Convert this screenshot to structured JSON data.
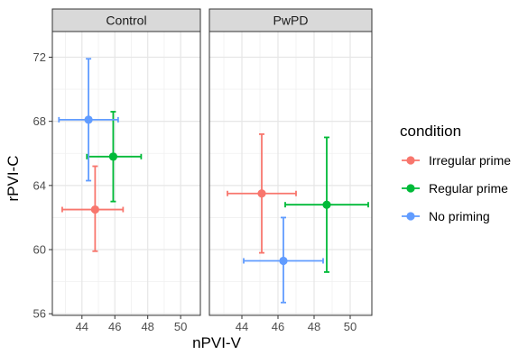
{
  "chart_data": {
    "type": "scatter",
    "facet_labels": [
      "Control",
      "PwPD"
    ],
    "xlabel": "nPVI-V",
    "ylabel": "rPVI-C",
    "xlim": [
      42.2,
      51.2
    ],
    "ylim": [
      55.9,
      73.6
    ],
    "x_ticks": [
      44,
      46,
      48,
      50
    ],
    "y_ticks": [
      56,
      60,
      64,
      68,
      72
    ],
    "grid": true,
    "legend": {
      "title": "condition",
      "position": "right",
      "entries": [
        "Irregular prime",
        "Regular prime",
        "No priming"
      ]
    },
    "series": [
      {
        "name": "Irregular prime",
        "color": "#F8766D",
        "points": [
          {
            "facet": "Control",
            "x": 44.8,
            "y": 62.5,
            "xmin": 42.8,
            "xmax": 46.5,
            "ymin": 59.9,
            "ymax": 65.2
          },
          {
            "facet": "PwPD",
            "x": 45.1,
            "y": 63.5,
            "xmin": 43.2,
            "xmax": 47.0,
            "ymin": 59.8,
            "ymax": 67.2
          }
        ]
      },
      {
        "name": "Regular prime",
        "color": "#00BA38",
        "points": [
          {
            "facet": "Control",
            "x": 45.9,
            "y": 65.8,
            "xmin": 44.3,
            "xmax": 47.6,
            "ymin": 63.0,
            "ymax": 68.6
          },
          {
            "facet": "PwPD",
            "x": 48.7,
            "y": 62.8,
            "xmin": 46.4,
            "xmax": 51.0,
            "ymin": 58.6,
            "ymax": 67.0
          }
        ]
      },
      {
        "name": "No priming",
        "color": "#619CFF",
        "points": [
          {
            "facet": "Control",
            "x": 44.4,
            "y": 68.1,
            "xmin": 42.6,
            "xmax": 46.2,
            "ymin": 64.3,
            "ymax": 71.9
          },
          {
            "facet": "PwPD",
            "x": 46.3,
            "y": 59.3,
            "xmin": 44.1,
            "xmax": 48.5,
            "ymin": 56.7,
            "ymax": 62.0
          }
        ]
      }
    ]
  }
}
